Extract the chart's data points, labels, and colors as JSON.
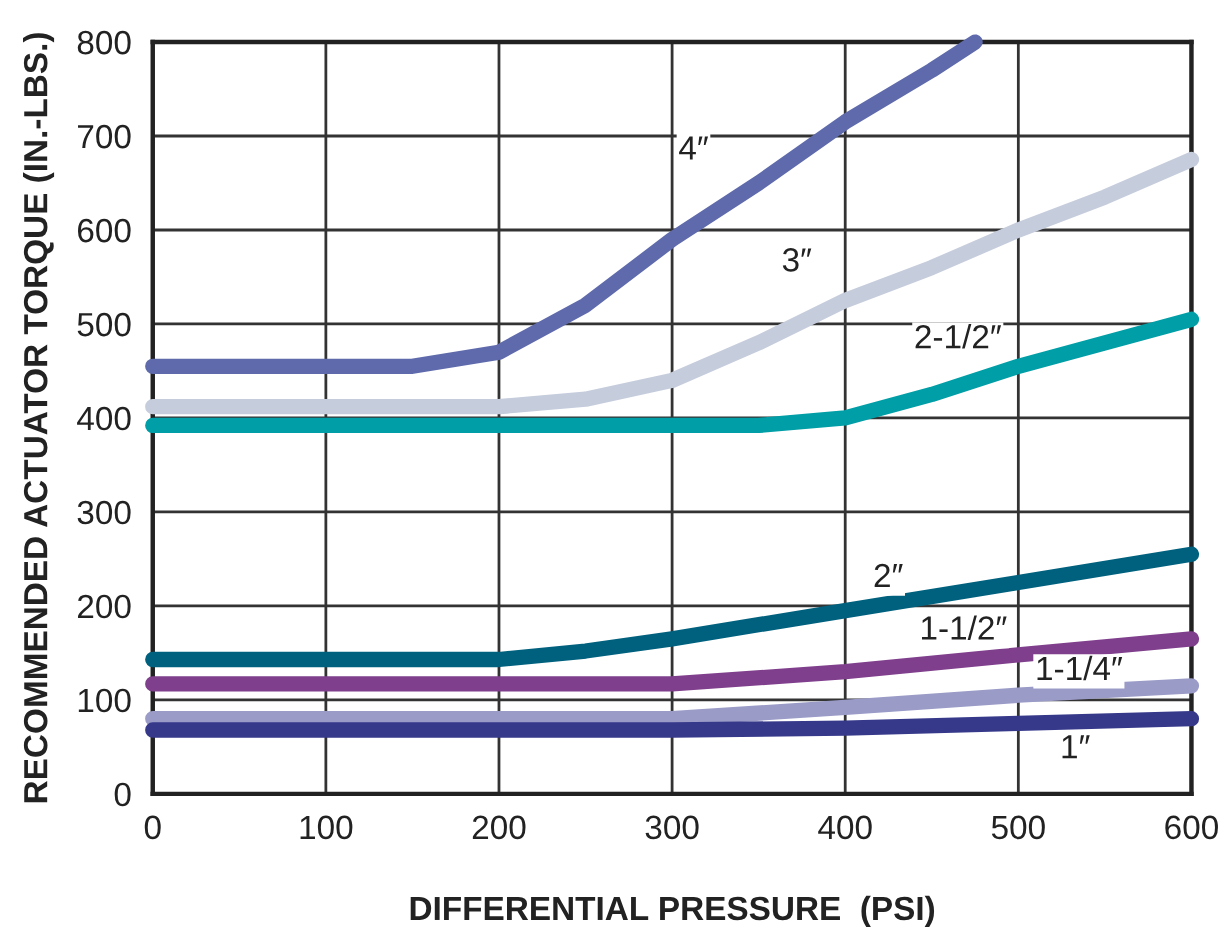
{
  "chart_data": {
    "type": "line",
    "xlabel": "DIFFERENTIAL PRESSURE  (PSI)",
    "ylabel": "RECOMMENDED ACTUATOR TORQUE (IN.-LBS.)",
    "xlim": [
      0,
      600
    ],
    "xticks": [
      0,
      100,
      200,
      300,
      400,
      500,
      600
    ],
    "ylim": [
      0,
      800
    ],
    "yticks": [
      0,
      100,
      200,
      300,
      400,
      500,
      600,
      700,
      800
    ],
    "grid": true,
    "legend": false,
    "line_style": "solid",
    "marker": "none",
    "series": [
      {
        "name": "4″",
        "color": "#5e6aab",
        "x": [
          0,
          100,
          150,
          200,
          250,
          300,
          350,
          400,
          450,
          475
        ],
        "values": [
          455,
          455,
          455,
          470,
          520,
          590,
          650,
          715,
          770,
          800
        ]
      },
      {
        "name": "3″",
        "color": "#c5ccdc",
        "x": [
          0,
          100,
          200,
          250,
          300,
          350,
          400,
          450,
          500,
          550,
          600
        ],
        "values": [
          412,
          412,
          412,
          420,
          440,
          480,
          525,
          560,
          600,
          635,
          675
        ]
      },
      {
        "name": "2-1/2″",
        "color": "#009ea6",
        "x": [
          0,
          100,
          200,
          300,
          350,
          400,
          450,
          500,
          550,
          600
        ],
        "values": [
          392,
          392,
          392,
          392,
          392,
          400,
          425,
          455,
          480,
          505
        ]
      },
      {
        "name": "2″",
        "color": "#00617e",
        "x": [
          0,
          100,
          200,
          250,
          300,
          400,
          500,
          600
        ],
        "values": [
          143,
          143,
          143,
          152,
          165,
          195,
          225,
          255
        ]
      },
      {
        "name": "1-1/2″",
        "color": "#7f3f8c",
        "x": [
          0,
          100,
          200,
          300,
          400,
          500,
          600
        ],
        "values": [
          117,
          117,
          117,
          117,
          130,
          148,
          165
        ]
      },
      {
        "name": "1-1/4″",
        "color": "#9a9bc7",
        "x": [
          0,
          100,
          200,
          300,
          400,
          500,
          600
        ],
        "values": [
          80,
          80,
          80,
          80,
          92,
          105,
          115
        ]
      },
      {
        "name": "1″",
        "color": "#36398a",
        "x": [
          0,
          100,
          200,
          300,
          400,
          500,
          600
        ],
        "values": [
          68,
          68,
          68,
          68,
          70,
          75,
          80
        ]
      }
    ]
  }
}
